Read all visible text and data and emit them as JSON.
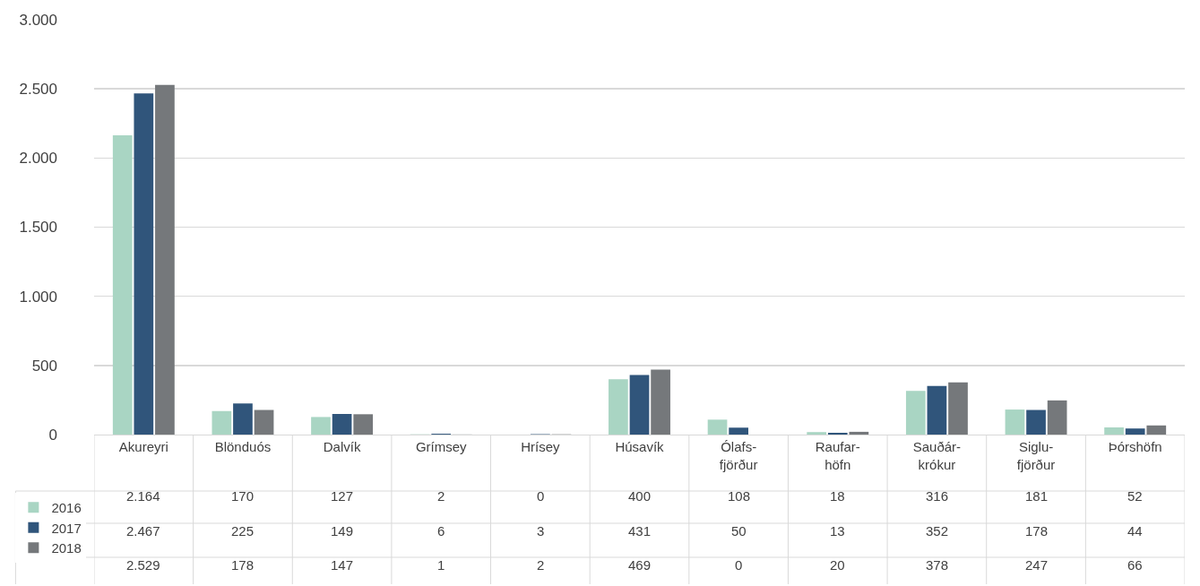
{
  "chart_data": {
    "type": "bar",
    "categories": [
      "Akureyri",
      "Blönduós",
      "Dalvík",
      "Grímsey",
      "Hrísey",
      "Húsavík",
      "Ólafs-fjörður",
      "Raufar-höfn",
      "Sauðár-krókur",
      "Siglu-fjörður",
      "Þórshöfn"
    ],
    "series": [
      {
        "name": "2016",
        "color": "#a9d5c3",
        "values": [
          2164,
          170,
          127,
          2,
          0,
          400,
          108,
          18,
          316,
          181,
          52
        ],
        "value_labels": [
          "2.164",
          "170",
          "127",
          "2",
          "0",
          "400",
          "108",
          "18",
          "316",
          "181",
          "52"
        ]
      },
      {
        "name": "2017",
        "color": "#30557b",
        "values": [
          2467,
          225,
          149,
          6,
          3,
          431,
          50,
          13,
          352,
          178,
          44
        ],
        "value_labels": [
          "2.467",
          "225",
          "149",
          "6",
          "3",
          "431",
          "50",
          "13",
          "352",
          "178",
          "44"
        ]
      },
      {
        "name": "2018",
        "color": "#75787b",
        "values": [
          2529,
          178,
          147,
          1,
          2,
          469,
          0,
          20,
          378,
          247,
          66
        ],
        "value_labels": [
          "2.529",
          "178",
          "147",
          "1",
          "2",
          "469",
          "0",
          "20",
          "378",
          "247",
          "66"
        ]
      }
    ],
    "ylim": [
      0,
      3000
    ],
    "yticks": [
      0,
      500,
      {
        "value": 1000,
        "label": "1.000"
      },
      {
        "value": 1500,
        "label": "1.500"
      },
      {
        "value": 2000,
        "label": "2.000"
      },
      {
        "value": 2500,
        "label": "2.500"
      },
      {
        "value": 3000,
        "label": "3.000"
      }
    ],
    "grid": "y",
    "legend": "bottom left"
  }
}
